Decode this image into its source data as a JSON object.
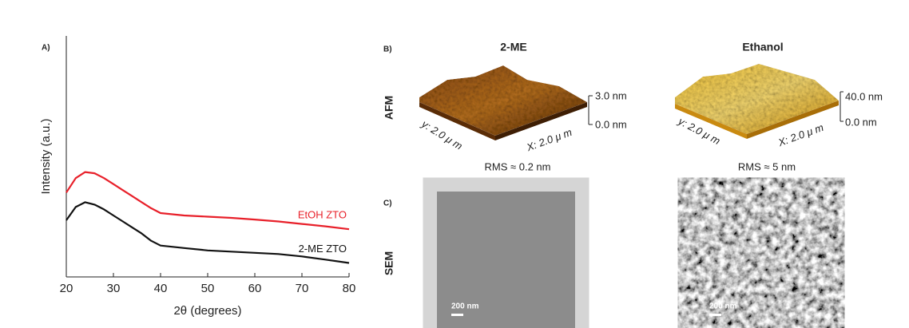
{
  "chart_data": {
    "type": "line",
    "panel_label": "A)",
    "xlabel": "2θ (degrees)",
    "ylabel": "Intensity (a.u.)",
    "x": [
      20,
      22,
      24,
      26,
      28,
      30,
      32,
      34,
      36,
      38,
      40,
      45,
      50,
      55,
      60,
      65,
      70,
      75,
      80
    ],
    "series": [
      {
        "name": "EtOH ZTO",
        "color": "#e8202a",
        "values": [
          3.5,
          4.1,
          4.35,
          4.3,
          4.1,
          3.85,
          3.6,
          3.35,
          3.1,
          2.85,
          2.65,
          2.55,
          2.5,
          2.45,
          2.38,
          2.3,
          2.2,
          2.1,
          1.98
        ]
      },
      {
        "name": "2-ME ZTO",
        "color": "#111111",
        "values": [
          2.35,
          2.9,
          3.1,
          3.0,
          2.8,
          2.55,
          2.3,
          2.05,
          1.8,
          1.5,
          1.3,
          1.2,
          1.1,
          1.05,
          1.0,
          0.95,
          0.85,
          0.72,
          0.58
        ]
      }
    ],
    "xlim": [
      20,
      80
    ],
    "xticks": [
      20,
      30,
      40,
      50,
      60,
      70,
      80
    ],
    "ylim": [
      0,
      10
    ],
    "grid": false
  },
  "figure": {
    "afm": {
      "panel_label": "B)",
      "row_label": "AFM",
      "samples": [
        {
          "title": "2-ME",
          "zmax": "3.0 nm",
          "zmin": "0.0 nm",
          "y_axis": "y: 2.0 μ m",
          "x_axis": "X: 2.0 μ m",
          "rms": "RMS ≈ 0.2 nm"
        },
        {
          "title": "Ethanol",
          "zmax": "40.0 nm",
          "zmin": "0.0 nm",
          "y_axis": "y: 2.0 μ m",
          "x_axis": "X: 2.0 μ m",
          "rms": "RMS ≈ 5 nm"
        }
      ]
    },
    "sem": {
      "panel_label": "C)",
      "row_label": "SEM",
      "scale_bars": [
        "200 nm",
        "200 nm"
      ]
    }
  }
}
